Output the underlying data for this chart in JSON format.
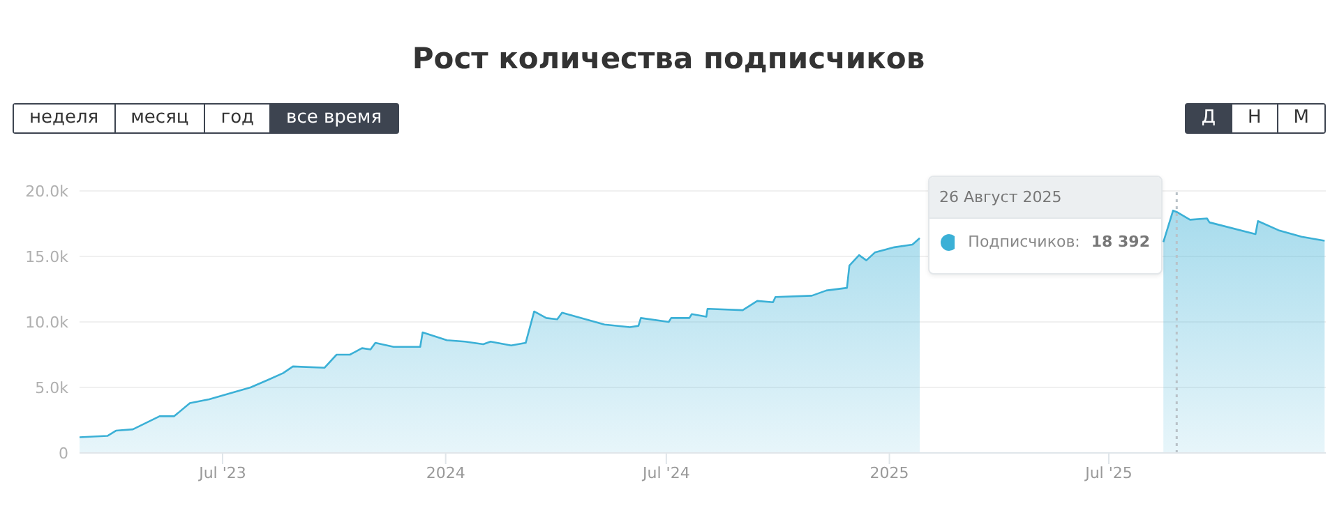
{
  "chart_data": {
    "type": "area",
    "title": "Рост количества подписчиков",
    "x": [
      "2023-03-05",
      "2023-03-28",
      "2023-04-04",
      "2023-04-18",
      "2023-05-10",
      "2023-05-22",
      "2023-06-04",
      "2023-06-20",
      "2023-07-09",
      "2023-07-24",
      "2023-08-08",
      "2023-08-20",
      "2023-08-28",
      "2023-09-23",
      "2023-10-03",
      "2023-10-14",
      "2023-10-24",
      "2023-10-31",
      "2023-11-04",
      "2023-11-19",
      "2023-12-11",
      "2023-12-13",
      "2024-01-02",
      "2024-01-17",
      "2024-02-01",
      "2024-02-07",
      "2024-02-24",
      "2024-03-07",
      "2024-03-14",
      "2024-03-24",
      "2024-04-02",
      "2024-04-06",
      "2024-05-11",
      "2024-06-01",
      "2024-06-08",
      "2024-06-10",
      "2024-07-03",
      "2024-07-05",
      "2024-07-20",
      "2024-07-22",
      "2024-08-03",
      "2024-08-04",
      "2024-09-02",
      "2024-09-14",
      "2024-09-27",
      "2024-09-29",
      "2024-10-29",
      "2024-11-10",
      "2024-11-27",
      "2024-11-29",
      "2024-12-07",
      "2024-12-13",
      "2024-12-20",
      "2025-01-05",
      "2025-01-20",
      "2025-01-26",
      "2025-02-10",
      "2025-08-05",
      "2025-08-15",
      "2025-08-23",
      "2025-08-26",
      "2025-09-06",
      "2025-09-20",
      "2025-09-22",
      "2025-10-30",
      "2025-11-01",
      "2025-11-18",
      "2025-12-07",
      "2025-12-26"
    ],
    "series": [
      {
        "name": "Подписчиков:",
        "color": "#3bb0d6",
        "values": [
          1200,
          1300,
          1700,
          1800,
          2800,
          2800,
          3800,
          4100,
          4600,
          5000,
          5600,
          6100,
          6600,
          6500,
          7500,
          7500,
          8000,
          7900,
          8400,
          8100,
          8100,
          9200,
          8600,
          8500,
          8300,
          8500,
          8200,
          8400,
          10800,
          10300,
          10200,
          10700,
          9800,
          9600,
          9700,
          10300,
          10000,
          10300,
          10300,
          10600,
          10400,
          11000,
          10900,
          11600,
          11500,
          11900,
          12000,
          12400,
          12600,
          14300,
          15100,
          14700,
          15300,
          15700,
          15900,
          16400,
          null,
          null,
          16100,
          18500,
          18392,
          17800,
          17900,
          17600,
          16700,
          17700,
          17000,
          16500,
          16200
        ]
      }
    ],
    "xlim": [
      "2023-03-05",
      "2025-12-27"
    ],
    "xticks": [
      {
        "value": "2023-07-01",
        "label": "Jul '23"
      },
      {
        "value": "2024-01-01",
        "label": "2024"
      },
      {
        "value": "2024-07-01",
        "label": "Jul '24"
      },
      {
        "value": "2025-01-01",
        "label": "2025"
      },
      {
        "value": "2025-07-01",
        "label": "Jul '25"
      }
    ],
    "ylim": [
      0,
      20000
    ],
    "yticks": [
      0,
      {
        "value": 5000,
        "label": "5.0k"
      },
      {
        "value": 10000,
        "label": "10.0k"
      },
      {
        "value": 15000,
        "label": "15.0k"
      },
      {
        "value": 20000,
        "label": "20.0k"
      }
    ],
    "grid": "y",
    "legend": "top right",
    "marker": "none",
    "line_style": "solid",
    "ref_lines": [
      {
        "axis": "x",
        "value": "2025-08-26",
        "line_style": "dotted",
        "color": "#b9c2c8"
      }
    ],
    "annotations": [
      "неделя",
      "месяц",
      "год",
      "все время",
      "Д",
      "Н",
      "М",
      "26 Август 2025",
      "18 392"
    ]
  }
}
